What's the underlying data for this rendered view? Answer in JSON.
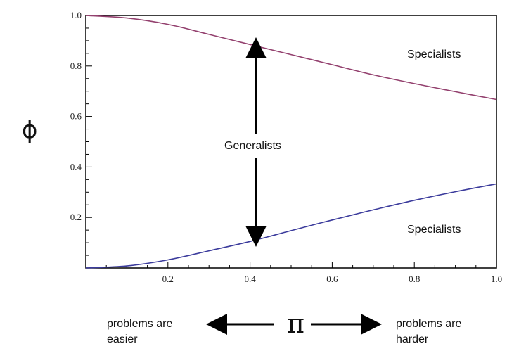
{
  "chart_data": {
    "type": "line",
    "xlabel": "π",
    "ylabel": "ϕ",
    "xlim": [
      0,
      1
    ],
    "ylim": [
      0,
      1
    ],
    "x_ticks": [
      0.2,
      0.4,
      0.6,
      0.8,
      1.0
    ],
    "x_tick_labels": [
      "0.2",
      "0.4",
      "0.6",
      "0.8",
      "1.0"
    ],
    "y_ticks": [
      0.2,
      0.4,
      0.6,
      0.8,
      1.0
    ],
    "y_tick_labels": [
      "0.2",
      "0.4",
      "0.6",
      "0.8",
      "1.0"
    ],
    "grid": false,
    "colors": {
      "upper": "#93406e",
      "lower": "#3b3b9c"
    },
    "x": [
      0,
      0.1,
      0.2,
      0.3,
      0.4,
      0.5,
      0.6,
      0.7,
      0.8,
      0.9,
      1.0
    ],
    "series": [
      {
        "values": [
          1.0,
          0.99,
          0.965,
          0.925,
          0.885,
          0.845,
          0.805,
          0.765,
          0.73,
          0.698,
          0.667
        ]
      },
      {
        "values": [
          0.0,
          0.008,
          0.032,
          0.068,
          0.105,
          0.148,
          0.19,
          0.23,
          0.268,
          0.302,
          0.333
        ]
      }
    ],
    "annotations": {
      "specialists_top": "Specialists",
      "specialists_bottom": "Specialists",
      "generalists": "Generalists",
      "left_note_line1": "problems are",
      "left_note_line2": "easier",
      "right_note_line1": "problems are",
      "right_note_line2": "harder"
    }
  }
}
